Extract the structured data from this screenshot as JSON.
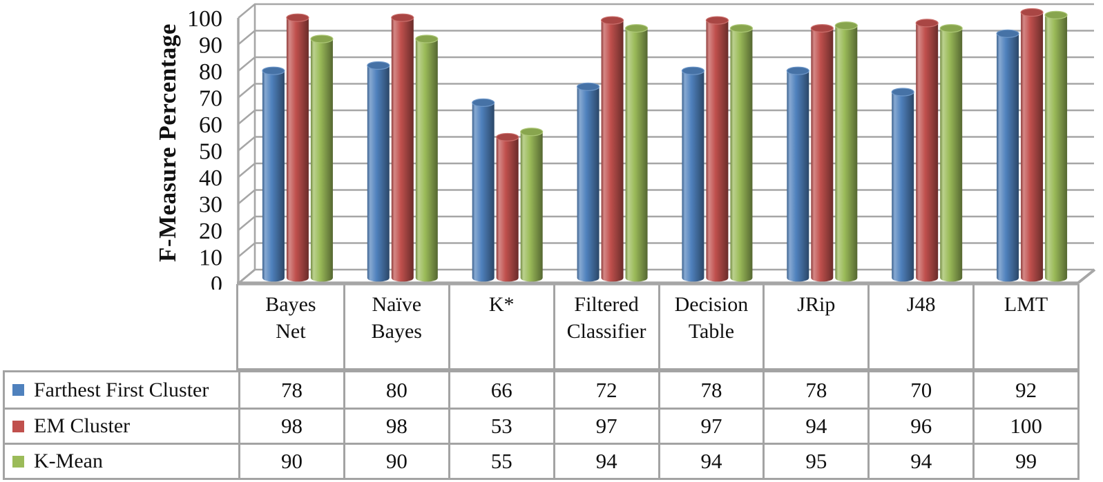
{
  "chart_data": {
    "type": "bar",
    "style": "3d-cylinder",
    "title": "",
    "xlabel": "",
    "ylabel": "F-Measure Percentage",
    "ylim": [
      0,
      100
    ],
    "yticks": [
      0,
      10,
      20,
      30,
      40,
      50,
      60,
      70,
      80,
      90,
      100
    ],
    "grid": true,
    "legend_position": "table-rows-below-left",
    "categories": [
      "Bayes Net",
      "Naïve Bayes",
      "K*",
      "Filtered Classifier",
      "Decision Table",
      "JRip",
      "J48",
      "LMT"
    ],
    "series": [
      {
        "name": "Farthest First Cluster",
        "color": "#4F81BD",
        "values": [
          78,
          80,
          66,
          72,
          78,
          78,
          70,
          92
        ]
      },
      {
        "name": "EM Cluster",
        "color": "#C0504D",
        "values": [
          98,
          98,
          53,
          97,
          97,
          94,
          96,
          100
        ]
      },
      {
        "name": "K-Mean",
        "color": "#9BBB59",
        "values": [
          90,
          90,
          55,
          94,
          94,
          95,
          94,
          99
        ]
      }
    ]
  },
  "colors": {
    "grid": "#a6a6a6",
    "table_border": "#a3a3a3",
    "text": "#111111",
    "background": "#ffffff"
  }
}
